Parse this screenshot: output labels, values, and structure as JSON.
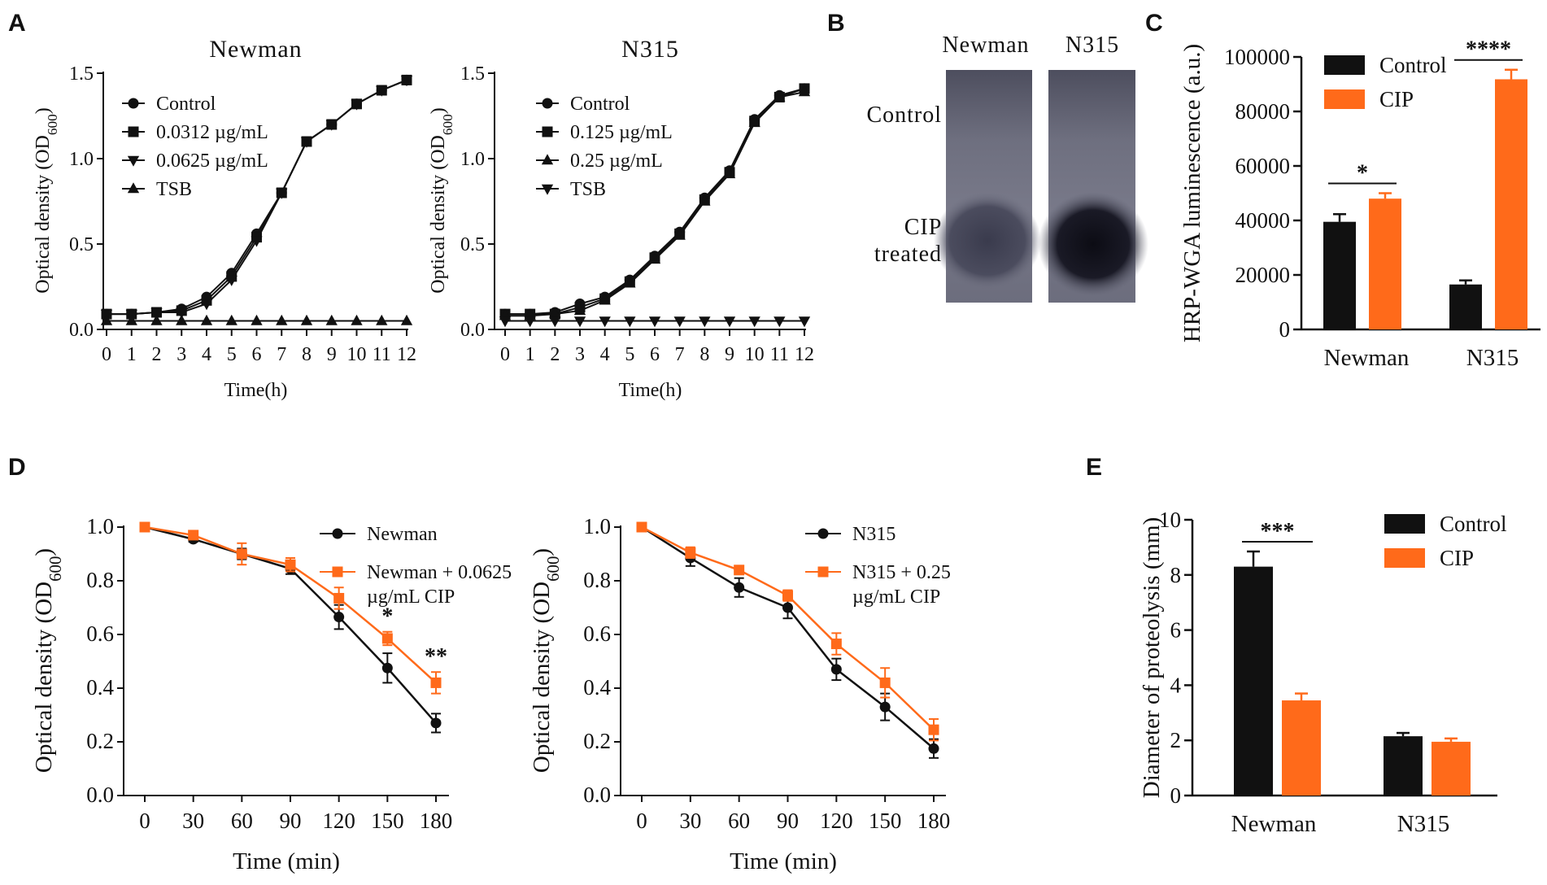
{
  "panels": {
    "A": "A",
    "B": "B",
    "C": "C",
    "D": "D",
    "E": "E"
  },
  "colors": {
    "black": "#111111",
    "orange": "#ff6a1a"
  },
  "blot": {
    "columns": [
      "Newman",
      "N315"
    ],
    "rows": [
      "Control",
      "CIP",
      "treated"
    ]
  },
  "chart_data": [
    {
      "id": "A1",
      "type": "line",
      "title": "Newman",
      "xlabel": "Time(h)",
      "ylabel": "Optical density (OD600)",
      "xlim": [
        0,
        12
      ],
      "ylim": [
        0,
        1.5
      ],
      "xticks": [
        "0",
        "1",
        "2",
        "3",
        "4",
        "5",
        "6",
        "7",
        "8",
        "9",
        "10",
        "11",
        "12"
      ],
      "yticks": [
        "0.0",
        "0.5",
        "1.0",
        "1.5"
      ],
      "x": [
        0,
        1,
        2,
        3,
        4,
        5,
        6,
        7,
        8,
        9,
        10,
        11,
        12
      ],
      "series": [
        {
          "name": "Control",
          "marker": "circle",
          "values": [
            0.09,
            0.09,
            0.1,
            0.12,
            0.19,
            0.33,
            0.56,
            0.8,
            1.1,
            1.2,
            1.32,
            1.4,
            1.46
          ]
        },
        {
          "name": "0.0312 µg/mL",
          "marker": "square",
          "values": [
            0.09,
            0.09,
            0.1,
            0.11,
            0.17,
            0.31,
            0.54,
            0.8,
            1.1,
            1.2,
            1.32,
            1.4,
            1.46
          ]
        },
        {
          "name": "0.0625 µg/mL",
          "marker": "triangle-down",
          "values": [
            0.09,
            0.09,
            0.1,
            0.1,
            0.15,
            0.29,
            0.52,
            0.8,
            1.1,
            1.2,
            1.32,
            1.4,
            1.46
          ]
        },
        {
          "name": "TSB",
          "marker": "triangle-up",
          "values": [
            0.05,
            0.05,
            0.05,
            0.05,
            0.05,
            0.05,
            0.05,
            0.05,
            0.05,
            0.05,
            0.05,
            0.05,
            0.05
          ]
        }
      ]
    },
    {
      "id": "A2",
      "type": "line",
      "title": "N315",
      "xlabel": "Time(h)",
      "ylabel": "Optical density (OD600)",
      "xlim": [
        0,
        12
      ],
      "ylim": [
        0,
        1.5
      ],
      "xticks": [
        "0",
        "1",
        "2",
        "3",
        "4",
        "5",
        "6",
        "7",
        "8",
        "9",
        "10",
        "11",
        "12"
      ],
      "yticks": [
        "0.0",
        "0.5",
        "1.0",
        "1.5"
      ],
      "x": [
        0,
        1,
        2,
        3,
        4,
        5,
        6,
        7,
        8,
        9,
        10,
        11,
        12
      ],
      "series": [
        {
          "name": "Control",
          "marker": "circle",
          "values": [
            0.09,
            0.09,
            0.1,
            0.15,
            0.19,
            0.29,
            0.43,
            0.57,
            0.77,
            0.93,
            1.23,
            1.37,
            1.41
          ]
        },
        {
          "name": "0.125 µg/mL",
          "marker": "square",
          "values": [
            0.09,
            0.09,
            0.09,
            0.13,
            0.18,
            0.28,
            0.42,
            0.56,
            0.76,
            0.92,
            1.22,
            1.36,
            1.41
          ]
        },
        {
          "name": "0.25 µg/mL",
          "marker": "triangle-up",
          "values": [
            0.08,
            0.08,
            0.09,
            0.11,
            0.17,
            0.27,
            0.41,
            0.55,
            0.75,
            0.91,
            1.21,
            1.36,
            1.39
          ]
        },
        {
          "name": "TSB",
          "marker": "triangle-down",
          "values": [
            0.05,
            0.05,
            0.05,
            0.05,
            0.05,
            0.05,
            0.05,
            0.05,
            0.05,
            0.05,
            0.05,
            0.05,
            0.05
          ]
        }
      ]
    },
    {
      "id": "C",
      "type": "bar",
      "ylabel": "HRP-WGA luminescence (a.u.)",
      "categories": [
        "Newman",
        "N315"
      ],
      "ylim": [
        0,
        100000
      ],
      "yticks": [
        "0",
        "20000",
        "40000",
        "60000",
        "80000",
        "100000"
      ],
      "series": [
        {
          "name": "Control",
          "color": "#111111",
          "values": [
            39500,
            16500
          ],
          "errors": [
            2800,
            1500
          ]
        },
        {
          "name": "CIP",
          "color": "#ff6a1a",
          "values": [
            48000,
            91800
          ],
          "errors": [
            2000,
            3500
          ]
        }
      ],
      "significance": [
        "*",
        "****"
      ]
    },
    {
      "id": "D1",
      "type": "line",
      "xlabel": "Time (min)",
      "ylabel": "Optical density (OD600)",
      "x": [
        0,
        30,
        60,
        90,
        120,
        150,
        180
      ],
      "xticks": [
        "0",
        "30",
        "60",
        "90",
        "120",
        "150",
        "180"
      ],
      "ylim": [
        0,
        1.0
      ],
      "yticks": [
        "0.0",
        "0.2",
        "0.4",
        "0.6",
        "0.8",
        "1.0"
      ],
      "series": [
        {
          "name": "Newman",
          "color": "#111111",
          "marker": "circle",
          "values": [
            1.0,
            0.955,
            0.9,
            0.845,
            0.665,
            0.475,
            0.27
          ],
          "errors": [
            0,
            0.01,
            0.02,
            0.02,
            0.045,
            0.055,
            0.035
          ]
        },
        {
          "name": "Newman + 0.0625 µg/mL CIP",
          "legend_lines": [
            "Newman + 0.0625",
            "µg/mL CIP"
          ],
          "color": "#ff6a1a",
          "marker": "square",
          "values": [
            1.0,
            0.97,
            0.9,
            0.86,
            0.735,
            0.585,
            0.42
          ],
          "errors": [
            0,
            0.01,
            0.04,
            0.025,
            0.04,
            0.025,
            0.04
          ]
        }
      ],
      "significance": [
        {
          "x": 150,
          "label": "*"
        },
        {
          "x": 180,
          "label": "**"
        }
      ]
    },
    {
      "id": "D2",
      "type": "line",
      "xlabel": "Time (min)",
      "ylabel": "Optical density (OD600)",
      "x": [
        0,
        30,
        60,
        90,
        120,
        150,
        180
      ],
      "xticks": [
        "0",
        "30",
        "60",
        "90",
        "120",
        "150",
        "180"
      ],
      "ylim": [
        0,
        1.0
      ],
      "yticks": [
        "0.0",
        "0.2",
        "0.4",
        "0.6",
        "0.8",
        "1.0"
      ],
      "series": [
        {
          "name": "N315",
          "color": "#111111",
          "marker": "circle",
          "values": [
            1.0,
            0.885,
            0.775,
            0.7,
            0.47,
            0.33,
            0.175
          ],
          "errors": [
            0,
            0.03,
            0.035,
            0.04,
            0.04,
            0.05,
            0.035
          ]
        },
        {
          "name": "N315 + 0.25 µg/mL CIP",
          "legend_lines": [
            "N315 + 0.25",
            "µg/mL CIP"
          ],
          "color": "#ff6a1a",
          "marker": "square",
          "values": [
            1.0,
            0.905,
            0.84,
            0.745,
            0.565,
            0.42,
            0.245
          ],
          "errors": [
            0,
            0.02,
            0.015,
            0.02,
            0.04,
            0.055,
            0.04
          ]
        }
      ]
    },
    {
      "id": "E",
      "type": "bar",
      "ylabel": "Diameter of proteolysis (mm)",
      "categories": [
        "Newman",
        "N315"
      ],
      "ylim": [
        0,
        10
      ],
      "yticks": [
        "0",
        "2",
        "4",
        "6",
        "8",
        "10"
      ],
      "series": [
        {
          "name": "Control",
          "color": "#111111",
          "values": [
            8.3,
            2.15
          ],
          "errors": [
            0.55,
            0.12
          ]
        },
        {
          "name": "CIP",
          "color": "#ff6a1a",
          "values": [
            3.45,
            1.95
          ],
          "errors": [
            0.25,
            0.12
          ]
        }
      ],
      "significance": [
        "***"
      ]
    }
  ]
}
